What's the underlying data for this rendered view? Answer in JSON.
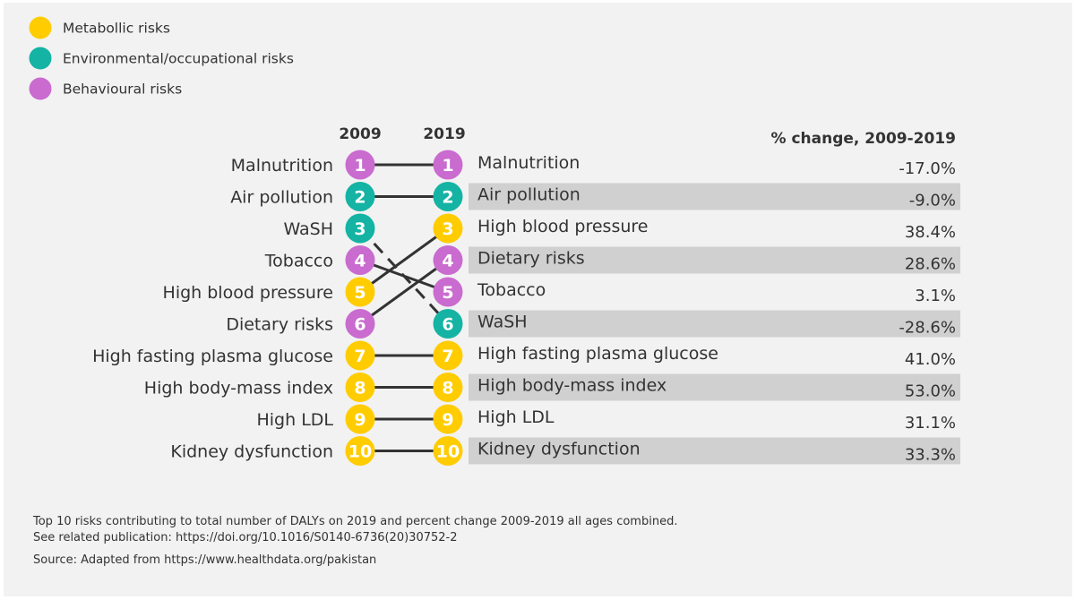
{
  "chart_data": {
    "type": "slope",
    "title": "",
    "xlabel": "",
    "ylabel": "",
    "legend": {
      "placement": "top-left",
      "items": [
        {
          "key": "metabolic",
          "label": "Metabollic risks",
          "color": "#ffcc00"
        },
        {
          "key": "environmental",
          "label": "Environmental/occupational risks",
          "color": "#14b3a3"
        },
        {
          "key": "behavioural",
          "label": "Behavioural risks",
          "color": "#c96bcf"
        }
      ]
    },
    "columns": {
      "left": "2009",
      "right": "2019",
      "change": "% change, 2009-2019"
    },
    "rank_2009": [
      {
        "rank": "1",
        "name": "Malnutrition",
        "category": "behavioural"
      },
      {
        "rank": "2",
        "name": "Air pollution",
        "category": "environmental"
      },
      {
        "rank": "3",
        "name": "WaSH",
        "category": "environmental"
      },
      {
        "rank": "4",
        "name": "Tobacco",
        "category": "behavioural"
      },
      {
        "rank": "5",
        "name": "High blood pressure",
        "category": "metabolic"
      },
      {
        "rank": "6",
        "name": "Dietary risks",
        "category": "behavioural"
      },
      {
        "rank": "7",
        "name": "High fasting plasma glucose",
        "category": "metabolic"
      },
      {
        "rank": "8",
        "name": "High body-mass index",
        "category": "metabolic"
      },
      {
        "rank": "9",
        "name": "High LDL",
        "category": "metabolic"
      },
      {
        "rank": "10",
        "name": "Kidney dysfunction",
        "category": "metabolic"
      }
    ],
    "rank_2019": [
      {
        "rank": "1",
        "name": "Malnutrition",
        "category": "behavioural",
        "change": "-17.0%",
        "prev_rank": 1
      },
      {
        "rank": "2",
        "name": "Air pollution",
        "category": "environmental",
        "change": "-9.0%",
        "prev_rank": 2
      },
      {
        "rank": "3",
        "name": "High blood pressure",
        "category": "metabolic",
        "change": "38.4%",
        "prev_rank": 5
      },
      {
        "rank": "4",
        "name": "Dietary risks",
        "category": "behavioural",
        "change": "28.6%",
        "prev_rank": 6
      },
      {
        "rank": "5",
        "name": "Tobacco",
        "category": "behavioural",
        "change": "3.1%",
        "prev_rank": 4
      },
      {
        "rank": "6",
        "name": "WaSH",
        "category": "environmental",
        "change": "-28.6%",
        "prev_rank": 3
      },
      {
        "rank": "7",
        "name": "High fasting plasma glucose",
        "category": "metabolic",
        "change": "41.0%",
        "prev_rank": 7
      },
      {
        "rank": "8",
        "name": "High body-mass index",
        "category": "metabolic",
        "change": "53.0%",
        "prev_rank": 8
      },
      {
        "rank": "9",
        "name": "High LDL",
        "category": "metabolic",
        "change": "31.1%",
        "prev_rank": 9
      },
      {
        "rank": "10",
        "name": "Kidney dysfunction",
        "category": "metabolic",
        "change": "33.3%",
        "prev_rank": 10
      }
    ]
  },
  "notes": {
    "caption": "Top 10 risks contributing to total number of DALYs on 2019 and percent change 2009-2019 all ages combined.",
    "publication": "See related publication: https://doi.org/10.1016/S0140-6736(20)30752-2",
    "source": "Source: Adapted from https://www.healthdata.org/pakistan"
  }
}
